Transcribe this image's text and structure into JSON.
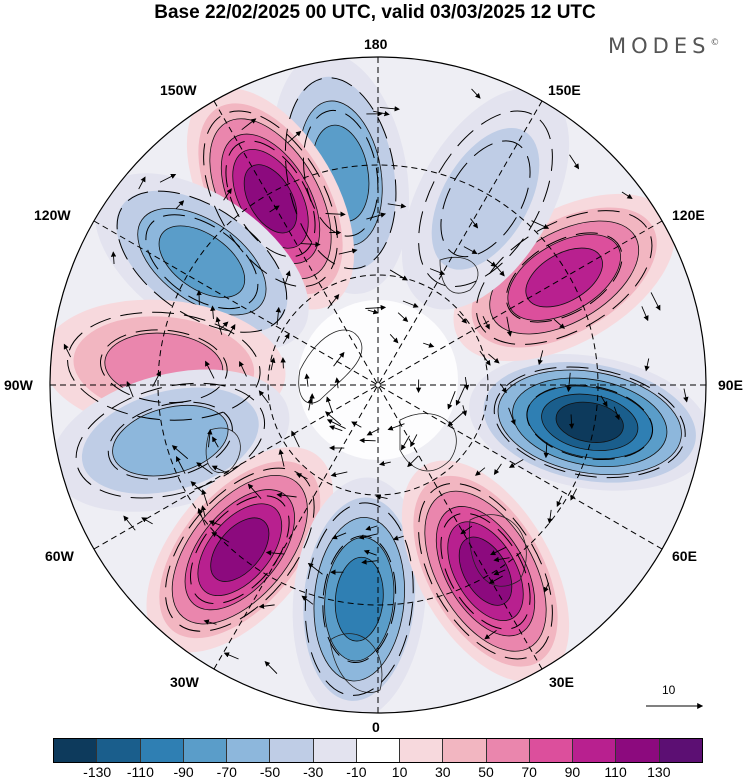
{
  "title": "Base 22/02/2025 00 UTC, valid 03/03/2025 12 UTC",
  "brand": {
    "name": "MODES",
    "mark": "©"
  },
  "longitude_labels": {
    "top": "180",
    "bottom": "0",
    "left": "90W",
    "right": "90E",
    "upper_left_outer": "150W",
    "upper_left_inner": "120W",
    "upper_right_outer": "150E",
    "upper_right_inner": "120E",
    "lower_left_inner": "60W",
    "lower_left_outer": "30W",
    "lower_right_inner": "60E",
    "lower_right_outer": "30E"
  },
  "vector_scale": {
    "label": "10"
  },
  "colorbar": {
    "colors": [
      "#0d3a5c",
      "#1a5e8c",
      "#2f7fb3",
      "#5a9dc9",
      "#8db7dc",
      "#bfcde6",
      "#e3e3ef",
      "#ffffff",
      "#f7d9dd",
      "#f2b6c1",
      "#ea86ad",
      "#dc4f9c",
      "#b8208f",
      "#8c0a7e",
      "#5c0f73"
    ],
    "ticks": [
      "-130",
      "-110",
      "-90",
      "-70",
      "-50",
      "-30",
      "-10",
      "10",
      "30",
      "50",
      "70",
      "90",
      "110",
      "130"
    ]
  },
  "anomaly_centers": [
    {
      "lon_label": "170W",
      "sign": "negative",
      "peak": -80
    },
    {
      "lon_label": "150W",
      "sign": "positive",
      "peak": 120
    },
    {
      "lon_label": "125W",
      "sign": "negative",
      "peak": -80
    },
    {
      "lon_label": "95W",
      "sign": "positive",
      "peak": 50
    },
    {
      "lon_label": "75W",
      "sign": "negative",
      "peak": -60
    },
    {
      "lon_label": "40W",
      "sign": "positive",
      "peak": 110
    },
    {
      "lon_label": "5W",
      "sign": "negative",
      "peak": -100
    },
    {
      "lon_label": "30E",
      "sign": "positive",
      "peak": 110
    },
    {
      "lon_label": "80E",
      "sign": "negative",
      "peak": -130
    },
    {
      "lon_label": "120E",
      "sign": "positive",
      "peak": 100
    },
    {
      "lon_label": "150E",
      "sign": "negative",
      "peak": -40
    }
  ]
}
